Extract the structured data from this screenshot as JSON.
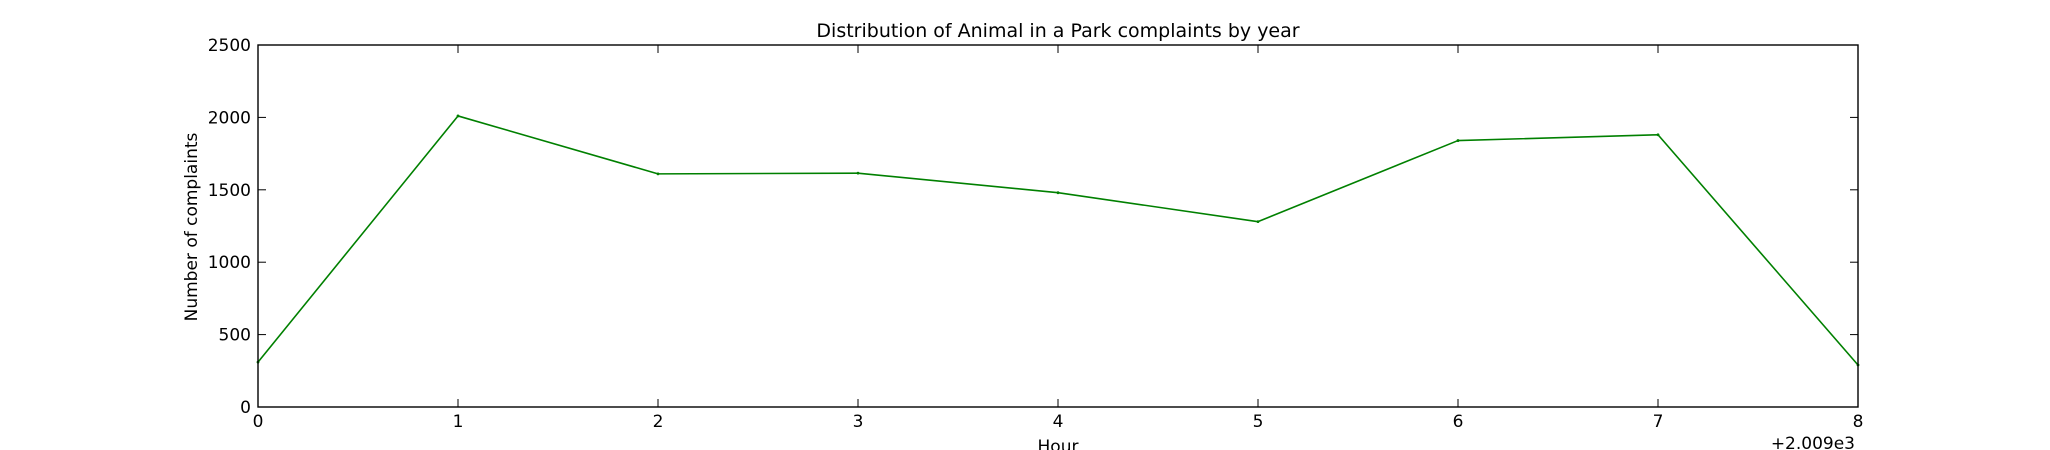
{
  "chart_data": {
    "type": "line",
    "title": "Distribution of  Animal in a Park complaints by year",
    "xlabel": "Hour",
    "ylabel": "Number of complaints",
    "x_offset_label": "+2.009e3",
    "x": [
      0,
      1,
      2,
      3,
      4,
      5,
      6,
      7,
      8
    ],
    "xticks": [
      "0",
      "1",
      "2",
      "3",
      "4",
      "5",
      "6",
      "7",
      "8"
    ],
    "yticks": [
      "0",
      "500",
      "1000",
      "1500",
      "2000",
      "2500"
    ],
    "xlim": [
      0,
      8
    ],
    "ylim": [
      0,
      2500
    ],
    "grid": false,
    "series": [
      {
        "color": "#008000",
        "values": [
          310,
          2010,
          1610,
          1615,
          1480,
          1280,
          1840,
          1880,
          290
        ]
      }
    ]
  }
}
